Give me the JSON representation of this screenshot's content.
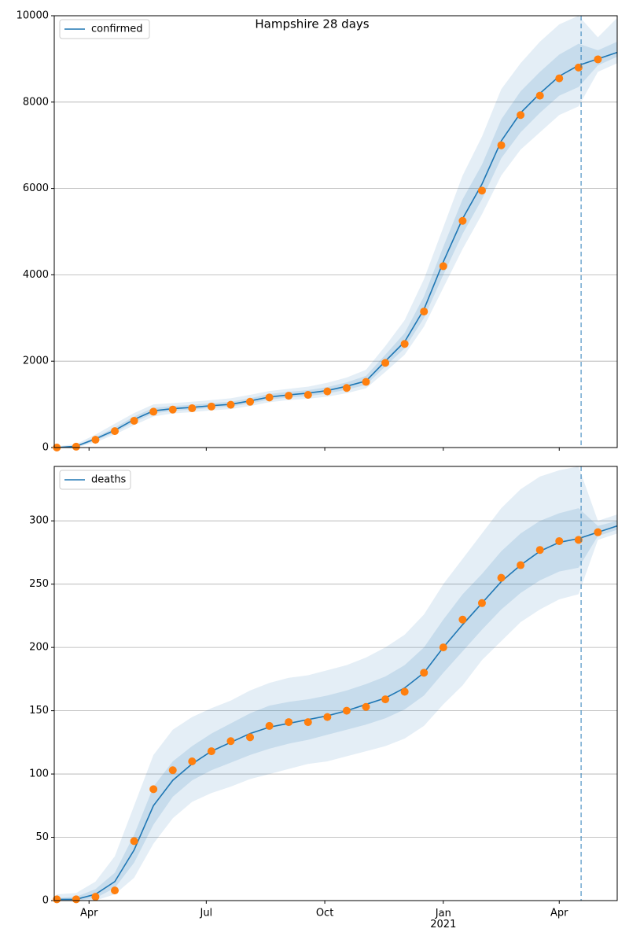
{
  "chart_data": [
    {
      "type": "line",
      "title": "Hampshire 28 days",
      "x": [
        -25,
        -10,
        5,
        20,
        35,
        50,
        65,
        80,
        95,
        110,
        125,
        140,
        155,
        170,
        185,
        200,
        215,
        230,
        245,
        260,
        275,
        290,
        305,
        320,
        335,
        350,
        365,
        380,
        395,
        410
      ],
      "xlim": [
        -27,
        410
      ],
      "ylim": [
        0,
        10000
      ],
      "yticks": [
        0,
        2000,
        4000,
        6000,
        8000,
        10000
      ],
      "grid": true,
      "legend": "upper left",
      "vline": 382,
      "series": [
        {
          "name": "confirmed",
          "color": "#1f77b4",
          "values": [
            0,
            30,
            200,
            400,
            650,
            850,
            900,
            930,
            970,
            1000,
            1080,
            1170,
            1220,
            1260,
            1320,
            1420,
            1540,
            2000,
            2450,
            3200,
            4300,
            5300,
            6100,
            7100,
            7750,
            8200,
            8600,
            8850,
            9000,
            9150
          ]
        }
      ],
      "points": {
        "color": "#ff7f0e",
        "values": [
          0,
          20,
          180,
          380,
          620,
          830,
          880,
          910,
          950,
          990,
          1060,
          1160,
          1200,
          1220,
          1300,
          1380,
          1520,
          1960,
          2400,
          3150,
          4200,
          5250,
          5950,
          7000,
          7700,
          8150,
          8550,
          8800,
          8990,
          null
        ]
      },
      "bands": [
        {
          "color": "#1f77b4",
          "opacity": 0.12,
          "lower": [
            0,
            0,
            120,
            300,
            520,
            720,
            790,
            820,
            860,
            890,
            960,
            1050,
            1100,
            1130,
            1180,
            1260,
            1370,
            1750,
            2150,
            2800,
            3700,
            4600,
            5400,
            6300,
            6900,
            7300,
            7700,
            7900,
            8700,
            8900
          ],
          "upper": [
            30,
            80,
            300,
            550,
            800,
            1000,
            1030,
            1060,
            1100,
            1140,
            1220,
            1310,
            1360,
            1410,
            1500,
            1620,
            1800,
            2350,
            2950,
            3900,
            5100,
            6300,
            7200,
            8300,
            8900,
            9400,
            9800,
            10000,
            9500,
            9950
          ]
        },
        {
          "color": "#1f77b4",
          "opacity": 0.15,
          "lower": [
            0,
            10,
            160,
            350,
            590,
            790,
            850,
            880,
            920,
            950,
            1020,
            1110,
            1160,
            1190,
            1250,
            1340,
            1450,
            1880,
            2300,
            3000,
            4000,
            4950,
            5750,
            6700,
            7300,
            7750,
            8150,
            8350,
            8850,
            9050
          ],
          "upper": [
            10,
            50,
            240,
            460,
            720,
            920,
            960,
            990,
            1030,
            1060,
            1140,
            1240,
            1290,
            1330,
            1400,
            1510,
            1660,
            2150,
            2650,
            3500,
            4650,
            5750,
            6550,
            7600,
            8250,
            8700,
            9100,
            9350,
            9200,
            9400
          ]
        }
      ]
    },
    {
      "type": "line",
      "x": [
        -25,
        -10,
        5,
        20,
        35,
        50,
        65,
        80,
        95,
        110,
        125,
        140,
        155,
        170,
        185,
        200,
        215,
        230,
        245,
        260,
        275,
        290,
        305,
        320,
        335,
        350,
        365,
        380,
        395,
        410
      ],
      "xlim": [
        -27,
        410
      ],
      "ylim": [
        0,
        343
      ],
      "yticks": [
        0,
        50,
        100,
        150,
        200,
        250,
        300
      ],
      "xticks": [
        {
          "value": 0,
          "label": "Apr"
        },
        {
          "value": 91,
          "label": "Jul"
        },
        {
          "value": 183,
          "label": "Oct"
        },
        {
          "value": 275,
          "label": "Jan\n2021"
        },
        {
          "value": 365,
          "label": "Apr"
        }
      ],
      "grid": true,
      "legend": "upper left",
      "vline": 382,
      "series": [
        {
          "name": "deaths",
          "color": "#1f77b4",
          "values": [
            1,
            1,
            5,
            15,
            40,
            75,
            95,
            108,
            118,
            125,
            132,
            137,
            140,
            143,
            146,
            150,
            155,
            160,
            168,
            180,
            200,
            218,
            235,
            252,
            265,
            276,
            283,
            286,
            291,
            296
          ]
        }
      ],
      "points": {
        "color": "#ff7f0e",
        "values": [
          1,
          1,
          3,
          8,
          47,
          88,
          103,
          110,
          118,
          126,
          129,
          138,
          141,
          141,
          145,
          150,
          153,
          159,
          165,
          180,
          200,
          222,
          235,
          255,
          265,
          277,
          284,
          285,
          291,
          null
        ]
      },
      "bands": [
        {
          "color": "#1f77b4",
          "opacity": 0.12,
          "lower": [
            0,
            0,
            0,
            5,
            18,
            45,
            65,
            78,
            85,
            90,
            96,
            100,
            104,
            108,
            110,
            114,
            118,
            122,
            128,
            138,
            155,
            170,
            190,
            205,
            220,
            230,
            238,
            242,
            285,
            290
          ],
          "upper": [
            5,
            6,
            15,
            35,
            75,
            115,
            135,
            145,
            152,
            158,
            166,
            172,
            176,
            178,
            182,
            186,
            192,
            200,
            210,
            226,
            250,
            270,
            290,
            310,
            325,
            335,
            340,
            343,
            300,
            305
          ]
        },
        {
          "color": "#1f77b4",
          "opacity": 0.15,
          "lower": [
            0,
            0,
            2,
            10,
            30,
            60,
            82,
            95,
            103,
            109,
            115,
            120,
            124,
            127,
            131,
            135,
            139,
            144,
            151,
            162,
            180,
            197,
            214,
            230,
            243,
            253,
            260,
            263,
            288,
            293
          ],
          "upper": [
            2,
            3,
            9,
            22,
            52,
            90,
            110,
            122,
            132,
            140,
            148,
            154,
            157,
            159,
            162,
            166,
            171,
            177,
            186,
            200,
            222,
            242,
            258,
            276,
            290,
            300,
            306,
            310,
            296,
            300
          ]
        }
      ]
    }
  ]
}
